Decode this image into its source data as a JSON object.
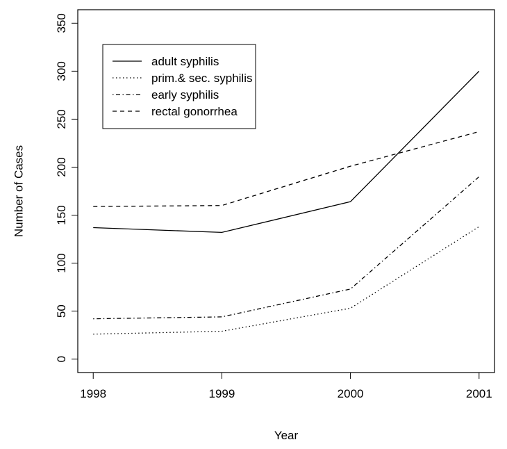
{
  "chart_data": {
    "type": "line",
    "x_label": "Year",
    "y_label": "Number of Cases",
    "x": [
      1998,
      1999,
      2000,
      2001
    ],
    "series": [
      {
        "name": "adult syphilis",
        "color": "#000000",
        "dash": "solid",
        "values": [
          137,
          132,
          164,
          300
        ]
      },
      {
        "name": "prim.& sec. syphilis",
        "color": "#000000",
        "dash": "dotted",
        "values": [
          26,
          29,
          53,
          138
        ]
      },
      {
        "name": "early syphilis",
        "color": "#000000",
        "dash": "dotdash",
        "values": [
          42,
          44,
          73,
          190
        ]
      },
      {
        "name": "rectal gonorrhea",
        "color": "#000000",
        "dash": "dashed",
        "values": [
          159,
          160,
          201,
          237
        ]
      }
    ],
    "xlim": [
      1997.88,
      2001.12
    ],
    "ylim": [
      -14,
      364
    ],
    "xticks": [
      1998,
      1999,
      2000,
      2001
    ],
    "yticks": [
      0,
      50,
      100,
      150,
      200,
      250,
      300,
      350
    ],
    "legend": "topleft"
  }
}
